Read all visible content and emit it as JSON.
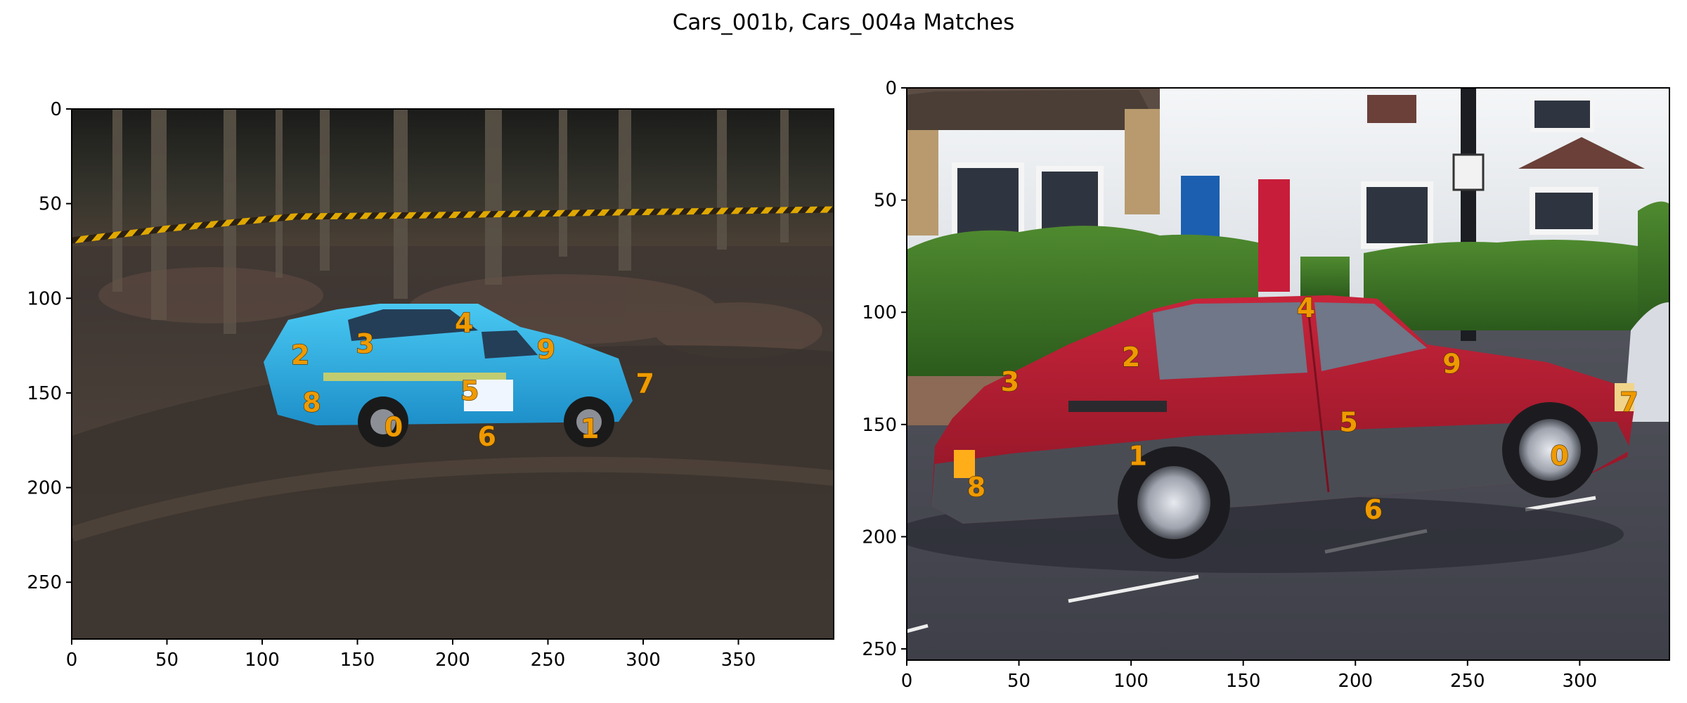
{
  "figure": {
    "title": "Cars_001b, Cars_004a Matches"
  },
  "panels": [
    {
      "name": "Cars_001b",
      "xlim": [
        0,
        400
      ],
      "ylim": [
        280,
        0
      ],
      "x_ticks": [
        0,
        50,
        100,
        150,
        200,
        250,
        300,
        350
      ],
      "y_ticks": [
        0,
        50,
        100,
        150,
        200,
        250
      ],
      "keypoints": [
        {
          "label": "0",
          "x": 169,
          "y": 168
        },
        {
          "label": "1",
          "x": 272,
          "y": 169
        },
        {
          "label": "2",
          "x": 120,
          "y": 130
        },
        {
          "label": "3",
          "x": 154,
          "y": 124
        },
        {
          "label": "4",
          "x": 206,
          "y": 113
        },
        {
          "label": "5",
          "x": 209,
          "y": 149
        },
        {
          "label": "6",
          "x": 218,
          "y": 173
        },
        {
          "label": "7",
          "x": 301,
          "y": 145
        },
        {
          "label": "8",
          "x": 126,
          "y": 155
        },
        {
          "label": "9",
          "x": 249,
          "y": 127
        }
      ]
    },
    {
      "name": "Cars_004a",
      "xlim": [
        0,
        340
      ],
      "ylim": [
        255,
        0
      ],
      "x_ticks": [
        0,
        50,
        100,
        150,
        200,
        250,
        300
      ],
      "y_ticks": [
        0,
        50,
        100,
        150,
        200,
        250
      ],
      "keypoints": [
        {
          "label": "0",
          "x": 291,
          "y": 164
        },
        {
          "label": "1",
          "x": 103,
          "y": 164
        },
        {
          "label": "2",
          "x": 100,
          "y": 120
        },
        {
          "label": "3",
          "x": 46,
          "y": 131
        },
        {
          "label": "4",
          "x": 178,
          "y": 98
        },
        {
          "label": "5",
          "x": 197,
          "y": 149
        },
        {
          "label": "6",
          "x": 208,
          "y": 188
        },
        {
          "label": "7",
          "x": 322,
          "y": 140
        },
        {
          "label": "8",
          "x": 31,
          "y": 178
        },
        {
          "label": "9",
          "x": 243,
          "y": 123
        }
      ]
    }
  ]
}
